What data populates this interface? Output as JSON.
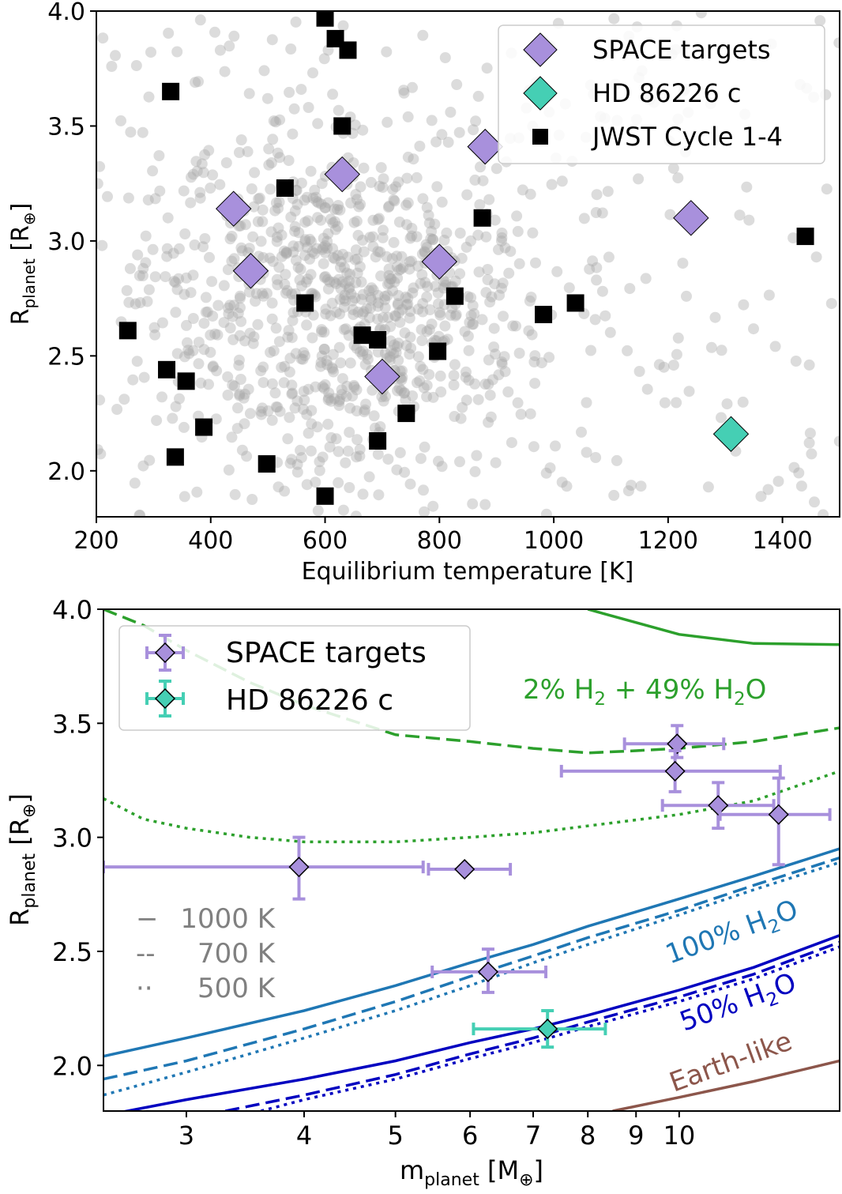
{
  "chart_data": [
    {
      "type": "scatter",
      "xlabel": "Equilibrium temperature [K]",
      "ylabel": {
        "main": "R",
        "sub": "planet",
        "unit_open": " [R",
        "unit_sub": "⊕",
        "unit_close": "]"
      },
      "xlim": [
        200,
        1500
      ],
      "ylim": [
        1.8,
        4.0
      ],
      "xticks": [
        200,
        400,
        600,
        800,
        1000,
        1200,
        1400
      ],
      "yticks": [
        2.0,
        2.5,
        3.0,
        3.5,
        4.0
      ],
      "xtick_labels": [
        "200",
        "400",
        "600",
        "800",
        "1000",
        "1200",
        "1400"
      ],
      "ytick_labels": [
        "2.0",
        "2.5",
        "3.0",
        "3.5",
        "4.0"
      ],
      "legend_position": "top-right",
      "background_population": {
        "name": "known planets",
        "color": "#a8a8a8",
        "count": 1100
      },
      "series": [
        {
          "name": "SPACE targets",
          "marker": "diamond",
          "color": "#a890dc",
          "x": [
            440,
            470,
            630,
            880,
            800,
            700,
            1240
          ],
          "y": [
            3.14,
            2.87,
            3.29,
            3.41,
            2.91,
            2.41,
            3.1
          ]
        },
        {
          "name": "HD 86226 c",
          "marker": "diamond",
          "color": "#45cfb4",
          "x": [
            1310
          ],
          "y": [
            2.16
          ]
        },
        {
          "name": "JWST Cycle 1-4",
          "marker": "square",
          "color": "#000000",
          "x": [
            600,
            618,
            640,
            330,
            630,
            530,
            875,
            1440,
            565,
            827,
            982,
            1038,
            255,
            665,
            692,
            797,
            323,
            357,
            742,
            388,
            692,
            338,
            498,
            600
          ],
          "y": [
            3.97,
            3.88,
            3.83,
            3.65,
            3.5,
            3.23,
            3.1,
            3.02,
            2.73,
            2.76,
            2.68,
            2.73,
            2.61,
            2.59,
            2.57,
            2.52,
            2.44,
            2.39,
            2.25,
            2.19,
            2.13,
            2.06,
            2.03,
            1.89
          ]
        }
      ]
    },
    {
      "type": "line",
      "xscale": "log",
      "xlabel": {
        "main": "m",
        "sub": "planet",
        "unit_open": " [M",
        "unit_sub": "⊕",
        "unit_close": "]"
      },
      "ylabel": {
        "main": "R",
        "sub": "planet",
        "unit_open": " [R",
        "unit_sub": "⊕",
        "unit_close": "]"
      },
      "xlim": [
        2.45,
        14.8
      ],
      "ylim": [
        1.8,
        4.0
      ],
      "xticks": [
        3,
        4,
        5,
        6,
        7,
        8,
        9,
        10
      ],
      "xtick_labels": [
        "3",
        "4",
        "5",
        "6",
        "7",
        "8",
        "9",
        "10"
      ],
      "yticks": [
        2.0,
        2.5,
        3.0,
        3.5,
        4.0
      ],
      "ytick_labels": [
        "2.0",
        "2.5",
        "3.0",
        "3.5",
        "4.0"
      ],
      "legend_position": "top-left",
      "points": [
        {
          "name": "SPACE targets",
          "color": "#a890dc",
          "data": [
            {
              "x": 9.95,
              "y": 3.41,
              "xerr": [
                1.2,
                1.2
              ],
              "yerr": [
                0.06,
                0.08
              ]
            },
            {
              "x": 9.9,
              "y": 3.29,
              "xerr": [
                2.4,
                2.9
              ],
              "yerr": [
                0.09,
                0.09
              ]
            },
            {
              "x": 11.0,
              "y": 3.14,
              "xerr": [
                1.4,
                1.6
              ],
              "yerr": [
                0.1,
                0.1
              ]
            },
            {
              "x": 12.75,
              "y": 3.1,
              "xerr": [
                1.7,
                1.7
              ],
              "yerr": [
                0.22,
                0.16
              ]
            },
            {
              "x": 3.95,
              "y": 2.87,
              "xerr": [
                1.5,
                1.4
              ],
              "yerr": [
                0.14,
                0.13
              ]
            },
            {
              "x": 5.92,
              "y": 2.86,
              "xerr": [
                0.5,
                0.7
              ],
              "yerr": [
                0.0,
                0.0
              ]
            },
            {
              "x": 6.27,
              "y": 2.41,
              "xerr": [
                0.8,
                0.95
              ],
              "yerr": [
                0.09,
                0.1
              ]
            }
          ]
        },
        {
          "name": "HD 86226 c",
          "color": "#45cfb4",
          "data": [
            {
              "x": 7.25,
              "y": 2.16,
              "xerr": [
                1.2,
                1.1
              ],
              "yerr": [
                0.08,
                0.08
              ]
            }
          ]
        }
      ],
      "curves": [
        {
          "name": "2% H2 + 49% H2O 1000 K",
          "color": "#2ca02c",
          "style": "solid",
          "x": [
            8.0,
            10.0,
            12.0,
            14.8
          ],
          "y": [
            4.0,
            3.89,
            3.85,
            3.845
          ]
        },
        {
          "name": "2% H2 + 49% H2O 700 K",
          "color": "#2ca02c",
          "style": "dashed",
          "x": [
            2.45,
            2.7,
            3.0,
            3.5,
            4.0,
            5.0,
            6.0,
            7.0,
            8.0,
            9.0,
            10.0,
            12.0,
            14.8
          ],
          "y": [
            4.0,
            3.93,
            3.82,
            3.68,
            3.58,
            3.45,
            3.42,
            3.39,
            3.37,
            3.38,
            3.39,
            3.42,
            3.48
          ]
        },
        {
          "name": "2% H2 + 49% H2O 500 K",
          "color": "#2ca02c",
          "style": "dotted",
          "x": [
            2.45,
            2.7,
            3.0,
            3.5,
            4.0,
            5.0,
            6.0,
            7.0,
            8.0,
            10.0,
            12.0,
            14.8
          ],
          "y": [
            3.17,
            3.08,
            3.04,
            3.0,
            2.98,
            2.98,
            3.0,
            3.02,
            3.05,
            3.1,
            3.16,
            3.29
          ]
        },
        {
          "name": "100% H2O 1000 K",
          "color": "#1f77b4",
          "style": "solid",
          "x": [
            2.45,
            3.0,
            4.0,
            5.0,
            6.0,
            7.0,
            8.0,
            10.0,
            12.0,
            14.8
          ],
          "y": [
            2.04,
            2.12,
            2.24,
            2.35,
            2.45,
            2.53,
            2.61,
            2.73,
            2.83,
            2.95
          ]
        },
        {
          "name": "100% H2O 700 K",
          "color": "#1f77b4",
          "style": "dashed",
          "x": [
            2.45,
            3.0,
            4.0,
            5.0,
            6.0,
            7.0,
            8.0,
            10.0,
            12.0,
            14.8
          ],
          "y": [
            1.94,
            2.02,
            2.16,
            2.28,
            2.39,
            2.48,
            2.56,
            2.68,
            2.79,
            2.91
          ]
        },
        {
          "name": "100% H2O 500 K",
          "color": "#1f77b4",
          "style": "dotted",
          "x": [
            2.45,
            3.0,
            4.0,
            5.0,
            6.0,
            7.0,
            8.0,
            10.0,
            12.0,
            14.8
          ],
          "y": [
            1.87,
            1.97,
            2.12,
            2.24,
            2.35,
            2.45,
            2.53,
            2.66,
            2.77,
            2.89
          ]
        },
        {
          "name": "50% H2O 1000 K",
          "color": "#0000c0",
          "style": "solid",
          "x": [
            2.45,
            3.0,
            4.0,
            5.0,
            6.0,
            7.0,
            8.0,
            10.0,
            12.0,
            14.8
          ],
          "y": [
            1.78,
            1.85,
            1.94,
            2.02,
            2.1,
            2.16,
            2.22,
            2.33,
            2.43,
            2.57
          ]
        },
        {
          "name": "50% H2O 700 K",
          "color": "#0000c0",
          "style": "dashed",
          "x": [
            3.3,
            4.0,
            5.0,
            6.0,
            7.0,
            8.0,
            10.0,
            12.0,
            14.8
          ],
          "y": [
            1.8,
            1.87,
            1.96,
            2.05,
            2.12,
            2.19,
            2.3,
            2.4,
            2.54
          ]
        },
        {
          "name": "50% H2O 500 K",
          "color": "#0000c0",
          "style": "dotted",
          "x": [
            3.6,
            4.0,
            5.0,
            6.0,
            7.0,
            8.0,
            10.0,
            12.0,
            14.8
          ],
          "y": [
            1.8,
            1.85,
            1.94,
            2.03,
            2.1,
            2.17,
            2.28,
            2.38,
            2.52
          ]
        },
        {
          "name": "Earth-like",
          "color": "#8c564b",
          "style": "solid",
          "x": [
            8.5,
            10.0,
            12.0,
            14.8
          ],
          "y": [
            1.8,
            1.86,
            1.93,
            2.02
          ]
        }
      ],
      "annotations": {
        "green": {
          "pre": "2% H",
          "sub1": "2",
          "mid": " + 49% H",
          "sub2": "2",
          "post": "O"
        },
        "blue": {
          "pre": "100% H",
          "sub": "2",
          "post": "O"
        },
        "navy": {
          "pre": "50% H",
          "sub": "2",
          "post": "O"
        },
        "earth": "Earth-like"
      },
      "temperature_key": [
        {
          "symbol": "−",
          "label": "1000 K"
        },
        {
          "symbol": "--",
          "label": "700 K"
        },
        {
          "symbol": "··",
          "label": "500 K"
        }
      ],
      "key_color": "#808080"
    }
  ]
}
